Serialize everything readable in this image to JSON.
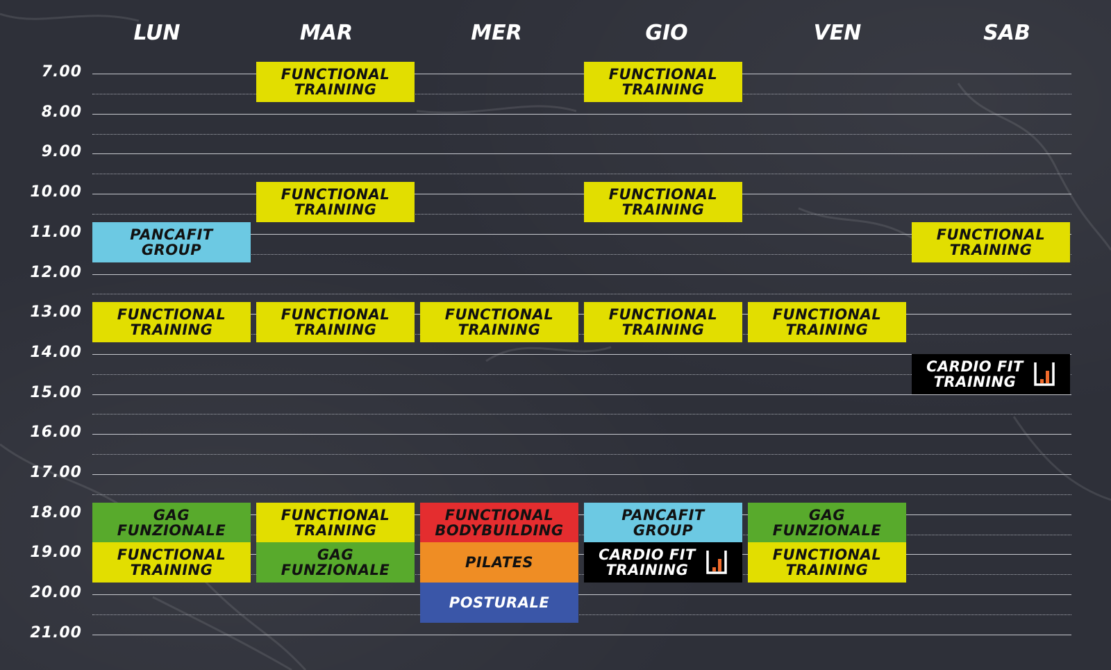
{
  "days": [
    "LUN",
    "MAR",
    "MER",
    "GIO",
    "VEN",
    "SAB"
  ],
  "hours": [
    "7.00",
    "8.00",
    "9.00",
    "10.00",
    "11.00",
    "12.00",
    "13.00",
    "14.00",
    "15.00",
    "16.00",
    "17.00",
    "18.00",
    "19.00",
    "20.00",
    "21.00"
  ],
  "colors": {
    "background": "#2e3039",
    "yellow": "#e2de00",
    "blue": "#6cc9e3",
    "green": "#58aa2c",
    "red": "#e42d2f",
    "orange": "#ef8d24",
    "navy": "#3a56a8",
    "black": "#000000",
    "logo_orange": "#ef6a2b"
  },
  "classes": [
    {
      "day": "MAR",
      "start": "7.00",
      "end": "8.00",
      "line1": "FUNCTIONAL",
      "line2": "TRAINING",
      "color": "yellow"
    },
    {
      "day": "GIO",
      "start": "7.00",
      "end": "8.00",
      "line1": "FUNCTIONAL",
      "line2": "TRAINING",
      "color": "yellow"
    },
    {
      "day": "MAR",
      "start": "10.00",
      "end": "11.00",
      "line1": "FUNCTIONAL",
      "line2": "TRAINING",
      "color": "yellow"
    },
    {
      "day": "GIO",
      "start": "10.00",
      "end": "11.00",
      "line1": "FUNCTIONAL",
      "line2": "TRAINING",
      "color": "yellow"
    },
    {
      "day": "LUN",
      "start": "11.00",
      "end": "12.00",
      "line1": "PANCAFIT",
      "line2": "GROUP",
      "color": "blue"
    },
    {
      "day": "SAB",
      "start": "11.00",
      "end": "12.00",
      "line1": "FUNCTIONAL",
      "line2": "TRAINING",
      "color": "yellow"
    },
    {
      "day": "LUN",
      "start": "13.00",
      "end": "14.00",
      "line1": "FUNCTIONAL",
      "line2": "TRAINING",
      "color": "yellow"
    },
    {
      "day": "MAR",
      "start": "13.00",
      "end": "14.00",
      "line1": "FUNCTIONAL",
      "line2": "TRAINING",
      "color": "yellow"
    },
    {
      "day": "MER",
      "start": "13.00",
      "end": "14.00",
      "line1": "FUNCTIONAL",
      "line2": "TRAINING",
      "color": "yellow"
    },
    {
      "day": "GIO",
      "start": "13.00",
      "end": "14.00",
      "line1": "FUNCTIONAL",
      "line2": "TRAINING",
      "color": "yellow"
    },
    {
      "day": "VEN",
      "start": "13.00",
      "end": "14.00",
      "line1": "FUNCTIONAL",
      "line2": "TRAINING",
      "color": "yellow"
    },
    {
      "day": "SAB",
      "start": "14.30",
      "end": "15.30",
      "line1": "CARDIO FIT",
      "line2": "TRAINING",
      "color": "black",
      "logo": true
    },
    {
      "day": "LUN",
      "start": "18.00",
      "end": "19.00",
      "line1": "GAG",
      "line2": "FUNZIONALE",
      "color": "green"
    },
    {
      "day": "MAR",
      "start": "18.00",
      "end": "19.00",
      "line1": "FUNCTIONAL",
      "line2": "TRAINING",
      "color": "yellow"
    },
    {
      "day": "MER",
      "start": "18.00",
      "end": "19.00",
      "line1": "FUNCTIONAL",
      "line2": "BODYBUILDING",
      "color": "red"
    },
    {
      "day": "GIO",
      "start": "18.00",
      "end": "19.00",
      "line1": "PANCAFIT",
      "line2": "GROUP",
      "color": "blue"
    },
    {
      "day": "VEN",
      "start": "18.00",
      "end": "19.00",
      "line1": "GAG",
      "line2": "FUNZIONALE",
      "color": "green"
    },
    {
      "day": "LUN",
      "start": "19.00",
      "end": "20.00",
      "line1": "FUNCTIONAL",
      "line2": "TRAINING",
      "color": "yellow"
    },
    {
      "day": "MAR",
      "start": "19.00",
      "end": "20.00",
      "line1": "GAG",
      "line2": "FUNZIONALE",
      "color": "green"
    },
    {
      "day": "MER",
      "start": "19.00",
      "end": "20.00",
      "line1": "PILATES",
      "line2": "",
      "color": "orange"
    },
    {
      "day": "GIO",
      "start": "19.00",
      "end": "20.00",
      "line1": "CARDIO FIT",
      "line2": "TRAINING",
      "color": "black",
      "logo": true
    },
    {
      "day": "VEN",
      "start": "19.00",
      "end": "20.00",
      "line1": "FUNCTIONAL",
      "line2": "TRAINING",
      "color": "yellow"
    },
    {
      "day": "MER",
      "start": "20.00",
      "end": "21.00",
      "line1": "POSTURALE",
      "line2": "",
      "color": "navy"
    }
  ]
}
